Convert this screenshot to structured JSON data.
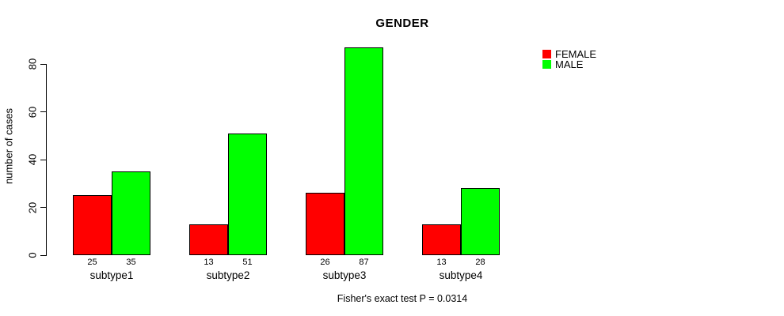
{
  "title": "GENDER",
  "ylabel": "number of cases",
  "footer": "Fisher's exact test P = 0.0314",
  "legend": {
    "items": [
      {
        "label": "FEMALE",
        "color": "#ff0000"
      },
      {
        "label": "MALE",
        "color": "#00ff00"
      }
    ]
  },
  "chart_data": {
    "type": "bar",
    "categories": [
      "subtype1",
      "subtype2",
      "subtype3",
      "subtype4"
    ],
    "series": [
      {
        "name": "FEMALE",
        "color": "#ff0000",
        "values": [
          25,
          13,
          26,
          13
        ]
      },
      {
        "name": "MALE",
        "color": "#00ff00",
        "values": [
          35,
          51,
          87,
          28
        ]
      }
    ],
    "title": "GENDER",
    "xlabel": "",
    "ylabel": "number of cases",
    "ylim": [
      0,
      80
    ],
    "yticks": [
      0,
      20,
      40,
      60,
      80
    ],
    "grid": false,
    "legend_position": "top-right",
    "bar_value_labels_shown": true,
    "annotation": "Fisher's exact test P = 0.0314"
  }
}
